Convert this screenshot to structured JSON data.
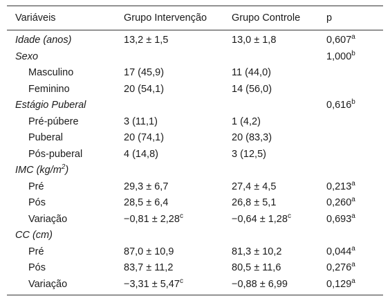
{
  "header": {
    "variable": "Variáveis",
    "intervention": "Grupo Intervenção",
    "control": "Grupo Controle",
    "p": "p"
  },
  "rows": [
    {
      "label": "Idade (anos)",
      "label_sup": "",
      "intervention": "13,2 ± 1,5",
      "intervention_sup": "",
      "control": "13,0 ± 1,8",
      "control_sup": "",
      "p": "0,607",
      "p_sup": "a"
    },
    {
      "label": "Sexo",
      "label_sup": "",
      "intervention": "",
      "intervention_sup": "",
      "control": "",
      "control_sup": "",
      "p": "1,000",
      "p_sup": "b"
    },
    {
      "label": "Masculino",
      "label_sup": "",
      "intervention": "17 (45,9)",
      "intervention_sup": "",
      "control": "11 (44,0)",
      "control_sup": "",
      "p": "",
      "p_sup": ""
    },
    {
      "label": "Feminino",
      "label_sup": "",
      "intervention": "20 (54,1)",
      "intervention_sup": "",
      "control": "14 (56,0)",
      "control_sup": "",
      "p": "",
      "p_sup": ""
    },
    {
      "label": "Estágio Puberal",
      "label_sup": "",
      "intervention": "",
      "intervention_sup": "",
      "control": "",
      "control_sup": "",
      "p": "0,616",
      "p_sup": "b"
    },
    {
      "label": "Pré-púbere",
      "label_sup": "",
      "intervention": "3 (11,1)",
      "intervention_sup": "",
      "control": "1 (4,2)",
      "control_sup": "",
      "p": "",
      "p_sup": ""
    },
    {
      "label": "Puberal",
      "label_sup": "",
      "intervention": "20 (74,1)",
      "intervention_sup": "",
      "control": "20 (83,3)",
      "control_sup": "",
      "p": "",
      "p_sup": ""
    },
    {
      "label": "Pós-puberal",
      "label_sup": "",
      "intervention": "4 (14,8)",
      "intervention_sup": "",
      "control": "3 (12,5)",
      "control_sup": "",
      "p": "",
      "p_sup": ""
    },
    {
      "label": "IMC (kg/m",
      "label_sup": "2",
      "label_suffix": ")",
      "intervention": "",
      "intervention_sup": "",
      "control": "",
      "control_sup": "",
      "p": "",
      "p_sup": ""
    },
    {
      "label": "Pré",
      "label_sup": "",
      "intervention": "29,3 ± 6,7",
      "intervention_sup": "",
      "control": "27,4 ± 4,5",
      "control_sup": "",
      "p": "0,213",
      "p_sup": "a"
    },
    {
      "label": "Pós",
      "label_sup": "",
      "intervention": "28,5 ± 6,4",
      "intervention_sup": "",
      "control": "26,8 ± 5,1",
      "control_sup": "",
      "p": "0,260",
      "p_sup": "a"
    },
    {
      "label": "Variação",
      "label_sup": "",
      "intervention": "−0,81 ± 2,28",
      "intervention_sup": "c",
      "control": "−0,64 ± 1,28",
      "control_sup": "c",
      "p": "0,693",
      "p_sup": "a"
    },
    {
      "label": "CC (cm)",
      "label_sup": "",
      "intervention": "",
      "intervention_sup": "",
      "control": "",
      "control_sup": "",
      "p": "",
      "p_sup": ""
    },
    {
      "label": "Pré",
      "label_sup": "",
      "intervention": "87,0 ± 10,9",
      "intervention_sup": "",
      "control": "81,3 ± 10,2",
      "control_sup": "",
      "p": "0,044",
      "p_sup": "a"
    },
    {
      "label": "Pós",
      "label_sup": "",
      "intervention": "83,7 ± 11,2",
      "intervention_sup": "",
      "control": "80,5 ± 11,6",
      "control_sup": "",
      "p": "0,276",
      "p_sup": "a"
    },
    {
      "label": "Variação",
      "label_sup": "",
      "intervention": "−3,31 ± 5,47",
      "intervention_sup": "c",
      "control": "−0,88 ± 6,99",
      "control_sup": "",
      "p": "0,129",
      "p_sup": "a"
    }
  ]
}
